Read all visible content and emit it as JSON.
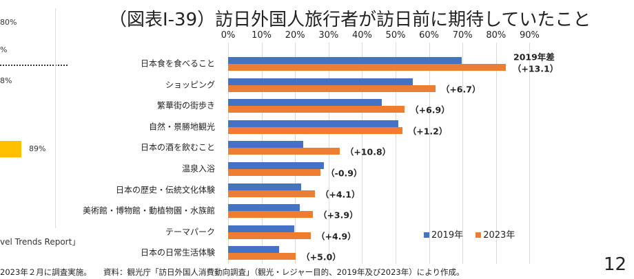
{
  "left_fragment": {
    "pct_1": "80%",
    "pct_2": "%",
    "pct_3": "8%",
    "pct_4": "89%",
    "report": "vel Trends Report」",
    "note": "2023年２月に調査実施。"
  },
  "title": "（図表Ⅰ-39）訪日外国人旅行者が訪日前に期待していたこと",
  "source": "資料：観光庁「訪日外国人消費動向調査」（観光・レジャー目的、2019年及び2023年）により作成。",
  "page_number": "12",
  "diff_header": "2019年差",
  "colors": {
    "2019": "#4472c4",
    "2023": "#ed7d31"
  },
  "chart_data": {
    "type": "bar",
    "orientation": "horizontal",
    "title": "（図表Ⅰ-39）訪日外国人旅行者が訪日前に期待していたこと",
    "xlim": [
      0,
      90
    ],
    "x_ticks": [
      "0%",
      "10%",
      "20%",
      "30%",
      "40%",
      "50%",
      "60%",
      "70%",
      "80%",
      "90%"
    ],
    "categories": [
      "日本食を食べること",
      "ショッピング",
      "繁華街の街歩き",
      "自然・景勝地観光",
      "日本の酒を飲むこと",
      "温泉入浴",
      "日本の歴史・伝統文化体験",
      "美術館・博物館・動植物園・水族館",
      "テーマパーク",
      "日本の日常生活体験"
    ],
    "series": [
      {
        "name": "2019年",
        "values": [
          69.8,
          55.2,
          45.8,
          50.8,
          22.5,
          28.5,
          21.8,
          21.4,
          19.8,
          15.2
        ]
      },
      {
        "name": "2023年",
        "values": [
          82.9,
          61.9,
          52.7,
          52.0,
          33.3,
          27.6,
          25.9,
          25.3,
          24.7,
          20.2
        ]
      }
    ],
    "annotations": [
      "（+13.1）",
      "（+6.7）",
      "（+6.9）",
      "（+1.2）",
      "（+10.8）",
      "（-0.9）",
      "（+4.1）",
      "（+3.9）",
      "（+4.9）",
      "（+5.0）"
    ],
    "legend": "bottom-right"
  }
}
